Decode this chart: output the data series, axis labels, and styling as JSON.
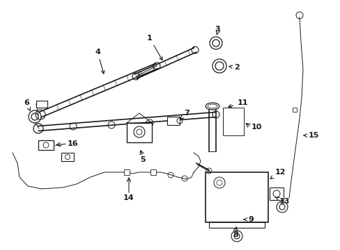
{
  "bg_color": "#ffffff",
  "line_color": "#1a1a1a",
  "fig_width": 4.89,
  "fig_height": 3.6,
  "dpi": 100,
  "label_fontsize": 8.0
}
